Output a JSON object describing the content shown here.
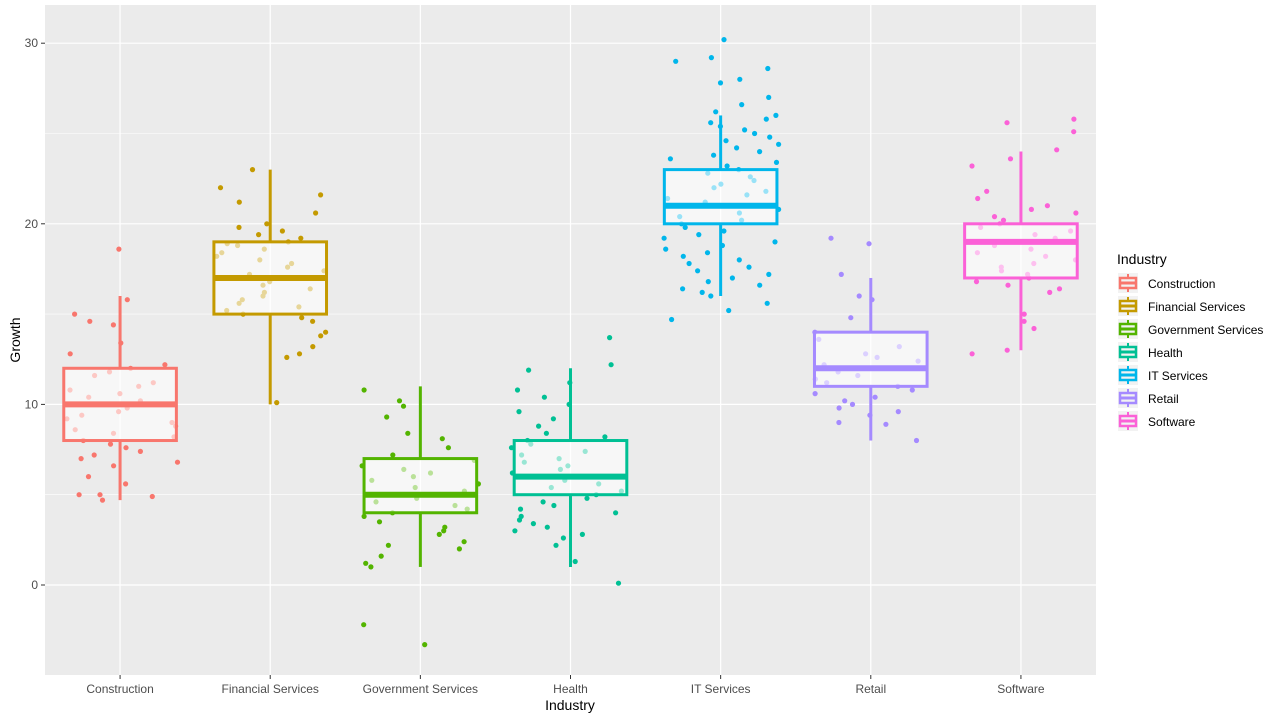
{
  "chart_data": {
    "type": "box",
    "xlabel": "Industry",
    "ylabel": "Growth",
    "ylim": [
      -5,
      31
    ],
    "y_ticks": [
      0,
      10,
      20,
      30
    ],
    "grid": true,
    "legend": {
      "title": "Industry",
      "position": "right"
    },
    "categories": [
      "Construction",
      "Financial Services",
      "Government Services",
      "Health",
      "IT Services",
      "Retail",
      "Software"
    ],
    "colors": [
      "#F8766D",
      "#C49A00",
      "#53B400",
      "#00C094",
      "#00B6EB",
      "#A58AFF",
      "#FB61D7"
    ],
    "boxes": [
      {
        "category": "Construction",
        "min": 4.7,
        "q1": 8,
        "median": 10,
        "q3": 12,
        "max": 16
      },
      {
        "category": "Financial Services",
        "min": 10,
        "q1": 15,
        "median": 17,
        "q3": 19,
        "max": 23
      },
      {
        "category": "Government Services",
        "min": 1,
        "q1": 4,
        "median": 5,
        "q3": 7,
        "max": 11
      },
      {
        "category": "Health",
        "min": 1,
        "q1": 5,
        "median": 6,
        "q3": 8,
        "max": 12
      },
      {
        "category": "IT Services",
        "min": 16,
        "q1": 20,
        "median": 21,
        "q3": 23,
        "max": 26
      },
      {
        "category": "Retail",
        "min": 8,
        "q1": 11,
        "median": 12,
        "q3": 14,
        "max": 17
      },
      {
        "category": "Software",
        "min": 13,
        "q1": 17,
        "median": 19,
        "q3": 20,
        "max": 24
      }
    ],
    "points": [
      {
        "category": "Construction",
        "values": [
          18.6,
          15.8,
          15.0,
          14.6,
          14.4,
          13.4,
          12.8,
          12.2,
          12.0,
          11.8,
          11.6,
          11.2,
          11.0,
          10.8,
          10.6,
          10.4,
          10.2,
          10.0,
          9.8,
          9.6,
          9.4,
          9.2,
          9.0,
          8.8,
          8.6,
          8.4,
          8.2,
          8.0,
          7.8,
          7.6,
          7.4,
          7.2,
          7.0,
          6.8,
          6.6,
          6.0,
          5.6,
          5.0,
          5.0,
          4.9,
          4.7
        ]
      },
      {
        "category": "Financial Services",
        "values": [
          23.0,
          22.0,
          21.6,
          21.2,
          20.6,
          20.0,
          19.8,
          19.6,
          19.4,
          19.2,
          19.0,
          18.9,
          18.8,
          18.6,
          18.4,
          18.2,
          18.0,
          17.8,
          17.6,
          17.4,
          17.2,
          17.0,
          16.8,
          16.6,
          16.4,
          16.2,
          16.0,
          15.8,
          15.6,
          15.4,
          15.2,
          15.0,
          14.8,
          14.6,
          14.0,
          13.8,
          13.2,
          12.8,
          12.6,
          10.1
        ]
      },
      {
        "category": "Government Services",
        "values": [
          10.8,
          10.2,
          9.9,
          9.3,
          8.4,
          8.1,
          7.6,
          7.2,
          6.9,
          6.6,
          6.4,
          6.2,
          6.0,
          5.8,
          5.6,
          5.4,
          5.2,
          5.0,
          4.8,
          4.6,
          4.4,
          4.2,
          4.0,
          3.8,
          3.5,
          3.2,
          3.0,
          2.8,
          2.4,
          2.2,
          2.0,
          1.6,
          1.2,
          1.0,
          -2.2,
          -3.3
        ]
      },
      {
        "category": "Health",
        "values": [
          13.7,
          12.2,
          11.9,
          11.2,
          10.8,
          10.4,
          10.0,
          9.6,
          9.2,
          8.8,
          8.4,
          8.2,
          8.0,
          7.8,
          7.6,
          7.4,
          7.2,
          7.0,
          6.8,
          6.6,
          6.4,
          6.2,
          6.0,
          5.8,
          5.6,
          5.4,
          5.2,
          5.0,
          4.8,
          4.6,
          4.4,
          4.2,
          4.0,
          3.8,
          3.6,
          3.4,
          3.2,
          3.0,
          2.8,
          2.6,
          2.2,
          1.3,
          0.1
        ]
      },
      {
        "category": "IT Services",
        "values": [
          30.2,
          29.2,
          29.0,
          28.6,
          28.0,
          27.8,
          27.0,
          26.6,
          26.2,
          26.0,
          25.8,
          25.6,
          25.4,
          25.2,
          25.0,
          24.8,
          24.6,
          24.4,
          24.2,
          24.0,
          23.8,
          23.6,
          23.4,
          23.2,
          23.0,
          22.8,
          22.6,
          22.4,
          22.2,
          22.0,
          21.8,
          21.6,
          21.4,
          21.2,
          21.0,
          20.8,
          20.6,
          20.4,
          20.2,
          20.0,
          19.8,
          19.6,
          19.4,
          19.2,
          19.0,
          18.8,
          18.6,
          18.4,
          18.2,
          18.0,
          17.8,
          17.6,
          17.4,
          17.2,
          17.0,
          16.8,
          16.6,
          16.4,
          16.2,
          16.0,
          15.6,
          15.2,
          14.7
        ]
      },
      {
        "category": "Retail",
        "values": [
          19.2,
          18.9,
          17.2,
          16.0,
          15.8,
          14.8,
          14.0,
          13.6,
          13.2,
          12.8,
          12.6,
          12.4,
          12.2,
          12.0,
          11.8,
          11.6,
          11.4,
          11.2,
          11.0,
          10.8,
          10.6,
          10.4,
          10.2,
          10.0,
          9.8,
          9.6,
          9.4,
          9.0,
          8.9,
          8.0
        ]
      },
      {
        "category": "Software",
        "values": [
          25.8,
          25.6,
          25.1,
          24.1,
          23.6,
          23.2,
          21.8,
          21.4,
          21.0,
          20.8,
          20.6,
          20.4,
          20.2,
          20.0,
          19.8,
          19.6,
          19.4,
          19.2,
          19.0,
          18.8,
          18.6,
          18.4,
          18.2,
          18.0,
          17.8,
          17.6,
          17.4,
          17.2,
          17.0,
          16.8,
          16.6,
          16.4,
          16.2,
          15.0,
          14.6,
          14.2,
          13.0,
          12.8
        ]
      }
    ]
  }
}
